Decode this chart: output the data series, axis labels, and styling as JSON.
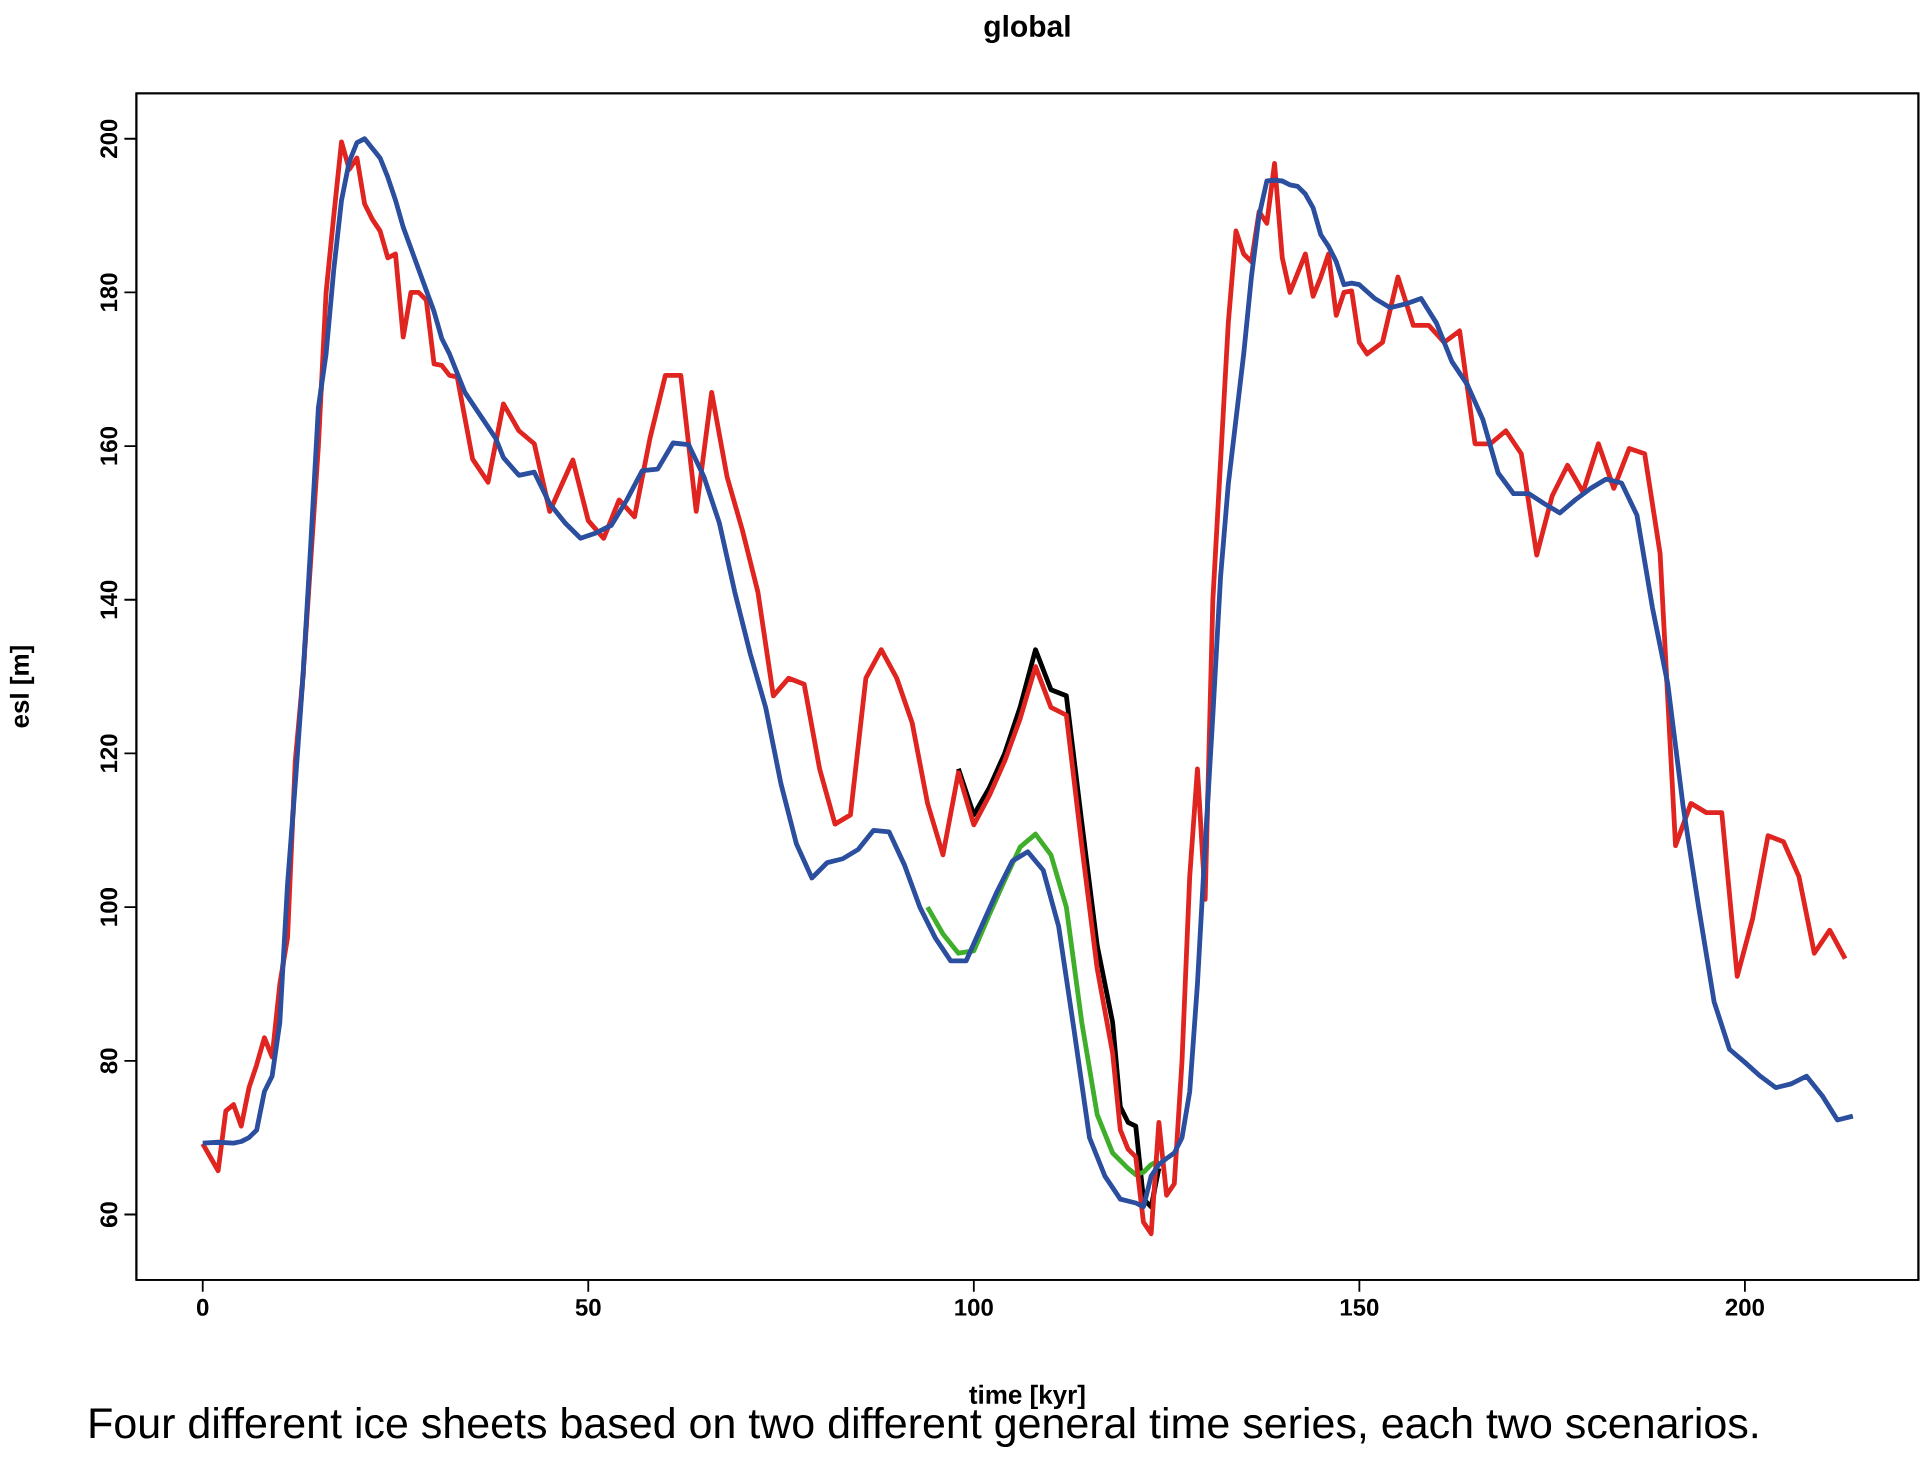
{
  "chart_data": {
    "type": "line",
    "title": "global",
    "xlabel": "time [kyr]",
    "ylabel": "esl [m]",
    "xlim": [
      -8.6,
      222.5
    ],
    "ylim": [
      51.5,
      205.9
    ],
    "xticks": [
      0,
      50,
      100,
      150,
      200
    ],
    "yticks": [
      60,
      80,
      100,
      120,
      140,
      160,
      180,
      200
    ],
    "grid": false,
    "marker": "none",
    "line_style": "solid",
    "annotations": [
      "Four different ice sheets based on two different general time series, each two scenarios."
    ],
    "series": [
      {
        "color": "#000000",
        "x": [
          98,
          100,
          102,
          104,
          106,
          108,
          110,
          112,
          114,
          116,
          118,
          119,
          120,
          121,
          122,
          123,
          124
        ],
        "values": [
          118,
          112,
          115.5,
          120,
          126,
          133.5,
          128.3,
          127.5,
          111,
          95,
          85,
          74,
          72,
          71.5,
          62,
          61,
          66
        ]
      },
      {
        "color": "#3fae2a",
        "x": [
          94,
          96,
          98,
          100,
          102,
          104,
          106,
          108,
          110,
          112,
          114,
          116,
          118,
          120,
          121,
          122,
          123,
          124
        ],
        "values": [
          100,
          96.5,
          94,
          94.3,
          99,
          103.5,
          107.8,
          109.5,
          106.8,
          100,
          85,
          73,
          68,
          66,
          65.2,
          65.5,
          66.5,
          67
        ]
      },
      {
        "color": "#e02420",
        "x": [
          0,
          2,
          3,
          4,
          5,
          6,
          7,
          8,
          9,
          10,
          11,
          12,
          13,
          14,
          15,
          16,
          17,
          18,
          19,
          20,
          21,
          22,
          23,
          24,
          25,
          26,
          27,
          28,
          29,
          30,
          31,
          32,
          33,
          35,
          37,
          39,
          41,
          43,
          45,
          48,
          50,
          52,
          54,
          56,
          58,
          60,
          62,
          64,
          66,
          68,
          70,
          72,
          74,
          76,
          78,
          80,
          82,
          84,
          86,
          88,
          90,
          92,
          94,
          96,
          98,
          100,
          102,
          104,
          106,
          108,
          110,
          112,
          114,
          116,
          118,
          119,
          120,
          121,
          122,
          123,
          124,
          125,
          126,
          127,
          128,
          129,
          130,
          131,
          133,
          134,
          135,
          136,
          137,
          138,
          139,
          140,
          141,
          142,
          143,
          144,
          145,
          146,
          147,
          148,
          149,
          150,
          151,
          153,
          155,
          157,
          159,
          161,
          163,
          165,
          167,
          169,
          171,
          173,
          175,
          177,
          179,
          181,
          183,
          185,
          187,
          189,
          191,
          193,
          195,
          197,
          199,
          201,
          203,
          205,
          207,
          209,
          211,
          213
        ],
        "values": [
          69.2,
          65.7,
          73.5,
          74.3,
          71.5,
          76.5,
          79.5,
          83,
          80.5,
          90,
          96,
          119,
          130,
          145,
          160,
          180,
          190,
          199.6,
          196,
          197.5,
          191.5,
          189.5,
          188,
          184.5,
          185,
          174.2,
          180,
          180,
          179,
          170.7,
          170.5,
          169.2,
          169,
          158.3,
          155.3,
          165.5,
          162,
          160.3,
          151.5,
          158.2,
          150.3,
          148,
          153,
          150.8,
          161,
          169.2,
          169.2,
          151.5,
          167,
          156,
          149,
          141,
          127.5,
          129.8,
          129,
          118,
          110.8,
          112,
          129.8,
          133.5,
          129.8,
          124,
          113.5,
          106.8,
          117.5,
          110.7,
          114.5,
          119,
          124.5,
          131.3,
          126,
          125,
          108,
          92,
          81,
          71,
          68.5,
          67.5,
          59,
          57.5,
          72,
          62.5,
          64,
          80,
          104,
          118,
          101,
          140,
          176,
          188,
          185,
          184,
          190.5,
          189,
          196.8,
          184.5,
          180,
          182.5,
          185,
          179.5,
          182,
          185,
          177,
          180,
          180.2,
          173.5,
          172,
          173.5,
          182,
          175.7,
          175.7,
          173.5,
          175,
          160.3,
          160.3,
          162,
          159,
          145.8,
          153.5,
          157.5,
          154,
          160.3,
          154.5,
          159.7,
          159,
          146,
          108,
          113.5,
          112.3,
          112.3,
          91,
          98.5,
          109.3,
          108.5,
          104,
          94,
          97,
          93.3
        ]
      },
      {
        "color": "#2b4f9e",
        "x": [
          0,
          2,
          4,
          5,
          6,
          7,
          8,
          9,
          10,
          11,
          12,
          13,
          14,
          15,
          16,
          17,
          18,
          19,
          20,
          21,
          23,
          24,
          25,
          26,
          28,
          30,
          31,
          32,
          34,
          36,
          38,
          39,
          41,
          43,
          45,
          47,
          49,
          51,
          53,
          55,
          57,
          59,
          61,
          63,
          65,
          67,
          69,
          71,
          73,
          75,
          77,
          79,
          81,
          83,
          85,
          87,
          89,
          91,
          93,
          95,
          97,
          99,
          101,
          103,
          105,
          107,
          109,
          111,
          113,
          115,
          117,
          119,
          121,
          122,
          123,
          124,
          125,
          126,
          127,
          128,
          129,
          130,
          131,
          132,
          133,
          135,
          136,
          137,
          138,
          139,
          140,
          141,
          142,
          143,
          144,
          145,
          146,
          147,
          148,
          149,
          150,
          152,
          154,
          156,
          158,
          160,
          162,
          164,
          166,
          168,
          170,
          172,
          174,
          176,
          178,
          180,
          182,
          184,
          186,
          188,
          190,
          192,
          194,
          196,
          198,
          200,
          202,
          204,
          206,
          208,
          210,
          212,
          214
        ],
        "values": [
          69.3,
          69.4,
          69.3,
          69.5,
          70,
          71,
          76,
          78,
          85,
          103,
          116,
          130,
          147,
          165,
          172,
          183,
          192,
          197,
          199.5,
          200,
          197.5,
          195,
          192,
          188.5,
          183,
          177.5,
          174,
          172,
          167,
          164,
          161,
          158.5,
          156.2,
          156.6,
          152.5,
          150,
          148,
          148.7,
          149.7,
          153,
          156.8,
          157,
          160.4,
          160.2,
          156,
          150,
          141,
          133,
          126,
          116,
          108.2,
          103.8,
          105.8,
          106.3,
          107.5,
          110,
          109.8,
          105.5,
          100,
          96,
          93,
          93,
          97.5,
          102,
          106,
          107.2,
          104.8,
          97.5,
          84,
          70,
          65,
          62,
          61.5,
          61,
          65,
          66.5,
          67.3,
          68,
          70,
          76,
          90,
          108,
          125,
          143,
          155,
          172,
          182,
          190,
          194.5,
          194.6,
          194.5,
          194,
          193.8,
          192.8,
          191,
          187.5,
          186,
          184,
          181,
          181.2,
          181,
          179.2,
          178,
          178.5,
          179.2,
          176,
          171,
          168,
          163.5,
          156.5,
          153.8,
          153.8,
          152.5,
          151.3,
          153,
          154.5,
          155.7,
          155.2,
          151,
          139,
          129,
          113,
          100,
          87.7,
          81.5,
          79.8,
          78,
          76.5,
          77,
          78,
          75.5,
          72.3,
          72.8
        ]
      }
    ]
  }
}
